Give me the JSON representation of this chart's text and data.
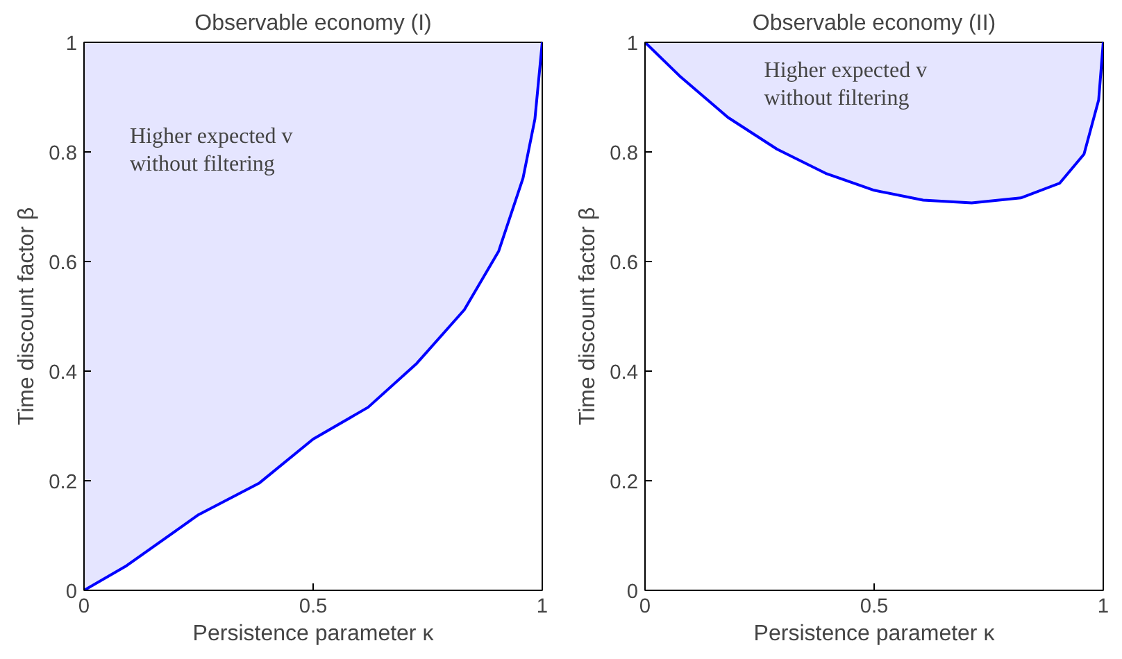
{
  "chart_data": [
    {
      "type": "line",
      "title": "Observable economy (I)",
      "xlabel": "Persistence parameter κ",
      "ylabel": "Time discount factor β",
      "xlim": [
        0,
        1
      ],
      "ylim": [
        0,
        1
      ],
      "xticks": [
        0,
        0.5,
        1
      ],
      "yticks": [
        0,
        0.2,
        0.4,
        0.6,
        0.8,
        1
      ],
      "grid": false,
      "series": [
        {
          "color": "#0000ff",
          "x": [
            0,
            0.093,
            0.25,
            0.383,
            0.5,
            0.62,
            0.726,
            0.83,
            0.905,
            0.958,
            0.984,
            1.0
          ],
          "values": [
            0,
            0.045,
            0.138,
            0.196,
            0.276,
            0.334,
            0.414,
            0.512,
            0.619,
            0.752,
            0.86,
            1.0
          ],
          "lower": [
            0,
            0.045,
            0.138,
            0.196,
            0.276,
            0.334,
            0.414,
            0.512,
            0.619,
            0.752,
            0.86,
            1.0
          ],
          "upper": [
            1,
            1,
            1,
            1,
            1,
            1,
            1,
            1,
            1,
            1,
            1,
            1
          ]
        }
      ],
      "annotations": [
        "Higher expected v\nwithout filtering"
      ]
    },
    {
      "type": "line",
      "title": "Observable economy (II)",
      "xlabel": "Persistence parameter κ",
      "ylabel": "Time discount factor β",
      "xlim": [
        0,
        1
      ],
      "ylim": [
        0,
        1
      ],
      "xticks": [
        0,
        0.5,
        1
      ],
      "yticks": [
        0,
        0.2,
        0.4,
        0.6,
        0.8,
        1
      ],
      "grid": false,
      "series": [
        {
          "color": "#0000ff",
          "x": [
            0,
            0.075,
            0.181,
            0.288,
            0.394,
            0.5,
            0.607,
            0.713,
            0.82,
            0.905,
            0.958,
            0.99,
            1.0
          ],
          "values": [
            1.0,
            0.939,
            0.863,
            0.805,
            0.761,
            0.73,
            0.712,
            0.707,
            0.716,
            0.743,
            0.796,
            0.895,
            1.0
          ],
          "lower": [
            1.0,
            0.939,
            0.863,
            0.805,
            0.761,
            0.73,
            0.712,
            0.707,
            0.716,
            0.743,
            0.796,
            0.895,
            1.0
          ],
          "upper": [
            1,
            1,
            1,
            1,
            1,
            1,
            1,
            1,
            1,
            1,
            1,
            1,
            1
          ]
        }
      ],
      "annotations": [
        "Higher expected v\nwithout filtering"
      ]
    }
  ]
}
